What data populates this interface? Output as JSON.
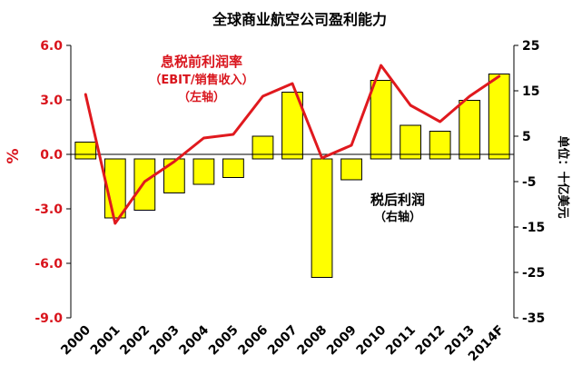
{
  "chart_data": {
    "type": "bar+line",
    "title": "全球商业航空公司盈利能力",
    "categories": [
      "2000",
      "2001",
      "2002",
      "2003",
      "2004",
      "2005",
      "2006",
      "2007",
      "2008",
      "2009",
      "2010",
      "2011",
      "2012",
      "2013",
      "2014F"
    ],
    "left_axis": {
      "label": "%",
      "ylim": [
        -9.0,
        6.0
      ],
      "ticks": [
        "6.0",
        "3.0",
        "0.0",
        "-3.0",
        "-6.0",
        "-9.0"
      ],
      "tick_values": [
        6.0,
        3.0,
        0.0,
        -3.0,
        -6.0,
        -9.0
      ],
      "color": "#d9141c"
    },
    "right_axis": {
      "label": "单位：十亿美元",
      "ylim": [
        -35,
        25
      ],
      "ticks": [
        "25",
        "15",
        "5",
        "-5",
        "-15",
        "-25",
        "-35"
      ],
      "tick_values": [
        25,
        15,
        5,
        -5,
        -15,
        -25,
        -35
      ],
      "color": "#000000"
    },
    "series": [
      {
        "name": "税后利润",
        "type": "bar",
        "axis": "right",
        "color": "#ffff00",
        "values": [
          3.7,
          -13.0,
          -11.3,
          -7.5,
          -5.6,
          -4.1,
          5.0,
          14.7,
          -26.1,
          -4.6,
          17.3,
          7.4,
          6.1,
          12.9,
          18.7
        ]
      },
      {
        "name": "息税前利润率",
        "type": "line",
        "axis": "left",
        "color": "#e0191e",
        "values": [
          3.3,
          -3.8,
          -1.5,
          -0.4,
          0.9,
          1.1,
          3.2,
          3.9,
          -0.2,
          0.5,
          4.9,
          2.7,
          1.8,
          3.2,
          4.3
        ]
      }
    ],
    "annotations": [
      {
        "id": "line-label",
        "lines": [
          "息税前利润率",
          "（EBIT/销售收入）",
          "（左轴）"
        ],
        "color": "#d9141c"
      },
      {
        "id": "bar-label",
        "lines": [
          "税后利润",
          "（右轴）"
        ],
        "color": "#000000"
      }
    ],
    "grid": false
  }
}
